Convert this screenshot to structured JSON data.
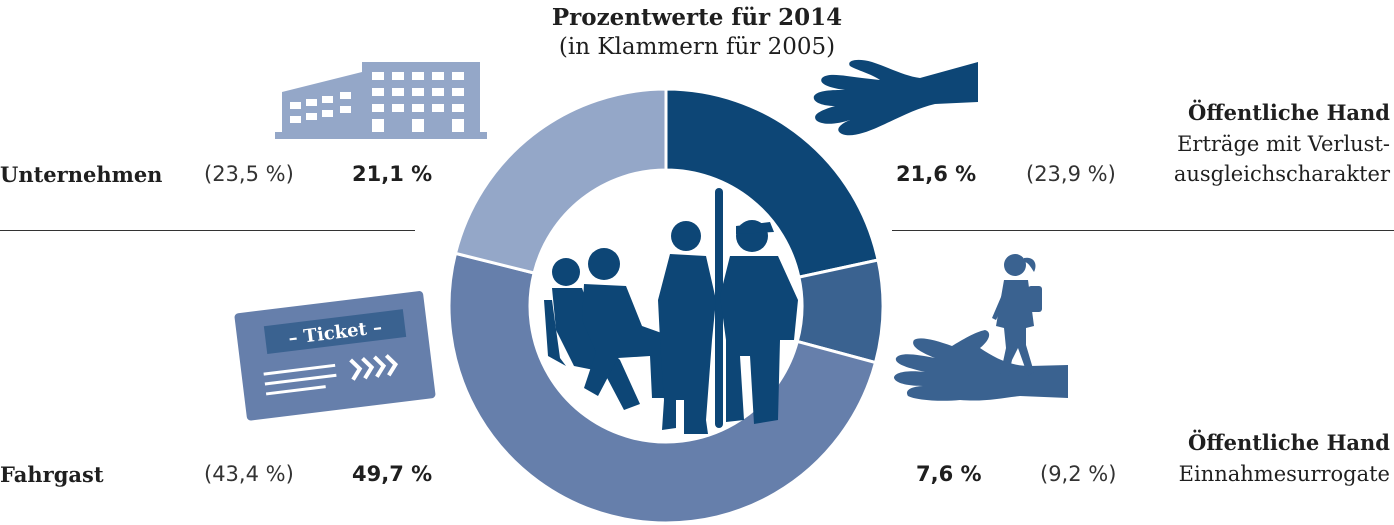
{
  "chart_data": {
    "type": "pie",
    "title": "Prozentwerte für 2014",
    "subtitle": "(in Klammern für 2005)",
    "donut": true,
    "segments": [
      {
        "name": "Öffentliche Hand",
        "sub": [
          "Erträge mit Verlust-",
          "ausgleichscharakter"
        ],
        "value": 21.6,
        "label": "21,6 %",
        "prev_value": 23.9,
        "prev_label": "(23,9 %)",
        "color": "#0d4676"
      },
      {
        "name": "Öffentliche Hand",
        "sub": [
          "Einnahmesurrogate"
        ],
        "value": 7.6,
        "label": "7,6 %",
        "prev_value": 9.2,
        "prev_label": "(9,2 %)",
        "color": "#3a6290"
      },
      {
        "name": "Fahrgast",
        "sub": [],
        "value": 49.7,
        "label": "49,7 %",
        "prev_value": 43.4,
        "prev_label": "(43,4 %)",
        "color": "#667fab"
      },
      {
        "name": "Unternehmen",
        "sub": [],
        "value": 21.1,
        "label": "21,1 %",
        "prev_value": 23.5,
        "prev_label": "(23,5 %)",
        "color": "#94a7c8"
      }
    ]
  },
  "icons": {
    "ticket_text": "– Ticket –",
    "names": [
      "building-icon",
      "hand-icon",
      "child-on-hand-icon",
      "ticket-icon",
      "passengers-icon"
    ]
  }
}
